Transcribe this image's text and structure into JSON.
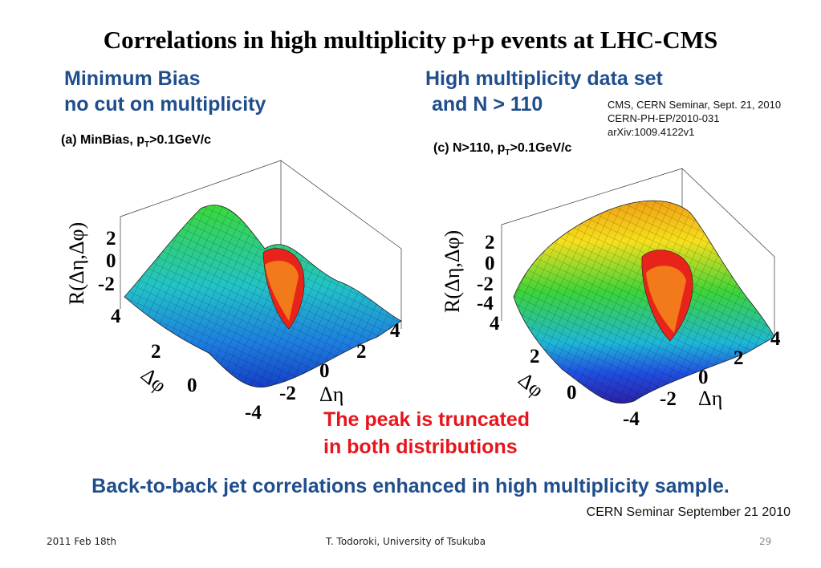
{
  "title": "Correlations in high multiplicity p+p events at LHC-CMS",
  "left_heading": {
    "line1": "Minimum Bias",
    "line2": "no cut on multiplicity"
  },
  "right_heading": {
    "line1": "High multiplicity data set",
    "line2": "and N > 110"
  },
  "reference": {
    "line1": "CMS, CERN Seminar, Sept. 21, 2010",
    "line2": "CERN-PH-EP/2010-031",
    "line3": "arXiv:1009.4122v1"
  },
  "plots": [
    {
      "label_prefix": "(a) MinBias, p",
      "label_sub": "T",
      "label_suffix": ">0.1GeV/c",
      "zlabel": "R(Δη,Δφ)",
      "zticks": [
        "2",
        "0",
        "-2"
      ],
      "phi_label": "Δφ",
      "phi_ticks": [
        "4",
        "2",
        "0"
      ],
      "eta_label": "Δη",
      "eta_ticks": [
        "4",
        "2",
        "0",
        "-2",
        "-4"
      ]
    },
    {
      "label_prefix": "(c) N>110, p",
      "label_sub": "T",
      "label_suffix": ">0.1GeV/c",
      "zlabel": "R(Δη,Δφ)",
      "zticks": [
        "2",
        "0",
        "-2",
        "-4"
      ],
      "phi_label": "Δφ",
      "phi_ticks": [
        "4",
        "2",
        "0"
      ],
      "eta_label": "Δη",
      "eta_ticks": [
        "4",
        "2",
        "0",
        "-2",
        "-4"
      ]
    }
  ],
  "note": {
    "line1": "The peak is truncated",
    "line2": "in both distributions"
  },
  "conclusion": "Back-to-back jet correlations enhanced in high multiplicity sample.",
  "seminar_credit": "CERN Seminar September 21 2010",
  "footer": {
    "date": "2011 Feb 18th",
    "author": "T. Todoroki, University of Tsukuba",
    "page": "29"
  },
  "colors": {
    "heading_blue": "#1f4e8c",
    "note_red": "#e8141b"
  }
}
